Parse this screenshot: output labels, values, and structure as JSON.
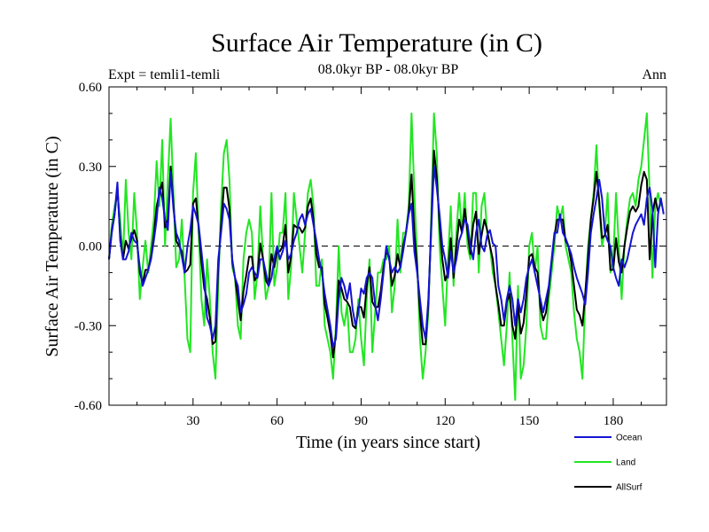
{
  "chart_data": {
    "type": "line",
    "title": "Surface Air Temperature (in C)",
    "subtitle_left": "Expt = temli1-temli",
    "subtitle_center": "08.0kyr BP - 08.0kyr BP",
    "subtitle_right": "Ann",
    "xlabel": "Time (in years since start)",
    "ylabel": "Surface Air Temperature (in C)",
    "xlim": [
      0,
      199
    ],
    "ylim": [
      -0.6,
      0.6
    ],
    "xticks": [
      30,
      60,
      90,
      120,
      150,
      180
    ],
    "yticks": [
      -0.6,
      -0.3,
      0.0,
      0.3,
      0.6
    ],
    "ytick_labels": [
      "-0.60",
      "-0.30",
      "0.00",
      "0.30",
      "0.60"
    ],
    "zero_line": "dashed",
    "legend_position": "bottom-right",
    "series": [
      {
        "name": "Ocean",
        "color": "#1414d2",
        "values": [
          -0.05,
          0.05,
          0.12,
          0.24,
          0.02,
          -0.05,
          -0.05,
          -0.02,
          0.05,
          0.02,
          0.01,
          -0.08,
          -0.15,
          -0.12,
          -0.09,
          -0.05,
          0.02,
          0.1,
          0.22,
          0.18,
          0.1,
          0.06,
          0.28,
          0.14,
          0.05,
          0.02,
          -0.04,
          -0.1,
          0.0,
          0.06,
          0.15,
          0.12,
          0.08,
          -0.02,
          -0.12,
          -0.27,
          -0.3,
          -0.35,
          -0.3,
          -0.05,
          0.05,
          0.16,
          0.14,
          0.1,
          -0.05,
          -0.12,
          -0.15,
          -0.25,
          -0.22,
          -0.18,
          -0.1,
          -0.08,
          -0.1,
          -0.12,
          -0.05,
          -0.05,
          -0.1,
          -0.15,
          -0.12,
          -0.05,
          0.0,
          -0.05,
          -0.02,
          0.02,
          -0.05,
          -0.03,
          0.02,
          0.05,
          0.1,
          0.12,
          0.08,
          0.12,
          0.14,
          0.08,
          0.02,
          -0.05,
          -0.1,
          -0.18,
          -0.24,
          -0.3,
          -0.38,
          -0.35,
          -0.2,
          -0.12,
          -0.15,
          -0.2,
          -0.14,
          -0.24,
          -0.3,
          -0.25,
          -0.16,
          -0.18,
          -0.12,
          -0.1,
          -0.12,
          -0.22,
          -0.28,
          -0.2,
          -0.1,
          0.0,
          -0.05,
          -0.1,
          -0.08,
          -0.1,
          -0.08,
          -0.02,
          0.05,
          0.12,
          0.16,
          -0.02,
          -0.1,
          -0.2,
          -0.3,
          -0.35,
          -0.2,
          0.05,
          0.3,
          0.22,
          0.12,
          0.0,
          -0.05,
          -0.12,
          -0.02,
          -0.1,
          -0.05,
          0.02,
          0.05,
          0.1,
          0.08,
          0.0,
          -0.05,
          0.05,
          0.1,
          0.0,
          -0.02,
          0.04,
          0.06,
          0.01,
          0.0,
          -0.15,
          -0.2,
          -0.28,
          -0.2,
          -0.15,
          -0.2,
          -0.3,
          -0.2,
          -0.25,
          -0.2,
          -0.12,
          -0.08,
          -0.05,
          -0.1,
          -0.15,
          -0.2,
          -0.25,
          -0.2,
          -0.15,
          -0.05,
          0.05,
          0.05,
          0.12,
          0.05,
          0.03,
          0.0,
          -0.03,
          -0.08,
          -0.12,
          -0.15,
          -0.18,
          -0.22,
          -0.1,
          0.05,
          0.12,
          0.18,
          0.25,
          0.18,
          0.05,
          0.02,
          0.0,
          -0.08,
          -0.12,
          -0.15,
          -0.05,
          -0.08,
          -0.05,
          0.0,
          0.05,
          0.08,
          0.1,
          0.12,
          0.08,
          0.18,
          0.22,
          0.14,
          -0.08,
          0.12,
          0.18,
          0.12
        ]
      },
      {
        "name": "Land",
        "color": "#22e622",
        "values": [
          -0.05,
          0.08,
          0.15,
          0.2,
          0.1,
          -0.05,
          0.25,
          0.05,
          -0.05,
          0.2,
          0.05,
          -0.2,
          -0.08,
          0.02,
          -0.1,
          0.0,
          0.1,
          0.32,
          0.15,
          0.4,
          0.0,
          0.25,
          0.48,
          0.2,
          -0.08,
          -0.05,
          0.1,
          -0.12,
          -0.35,
          -0.4,
          0.2,
          0.35,
          0.05,
          -0.2,
          -0.3,
          -0.05,
          -0.2,
          -0.4,
          -0.5,
          -0.15,
          0.15,
          0.35,
          0.4,
          0.25,
          -0.08,
          -0.12,
          -0.3,
          -0.35,
          -0.05,
          0.05,
          0.1,
          0.05,
          -0.2,
          -0.1,
          0.15,
          -0.05,
          -0.2,
          -0.15,
          0.2,
          -0.15,
          -0.08,
          0.05,
          0.05,
          0.2,
          -0.2,
          -0.08,
          0.2,
          0.1,
          0.0,
          -0.1,
          0.05,
          0.2,
          0.25,
          0.15,
          -0.15,
          -0.15,
          -0.05,
          -0.3,
          -0.35,
          -0.4,
          -0.5,
          -0.3,
          0.0,
          -0.25,
          -0.3,
          -0.22,
          -0.4,
          -0.4,
          -0.35,
          -0.2,
          -0.35,
          -0.45,
          -0.2,
          -0.05,
          -0.4,
          -0.25,
          -0.1,
          -0.1,
          -0.05,
          -0.05,
          0.0,
          -0.25,
          -0.15,
          0.1,
          -0.1,
          0.05,
          0.05,
          0.15,
          0.5,
          0.2,
          -0.05,
          -0.35,
          -0.5,
          -0.4,
          -0.25,
          0.1,
          0.5,
          0.35,
          0.0,
          -0.15,
          -0.3,
          -0.05,
          0.15,
          -0.15,
          0.05,
          0.2,
          0.05,
          0.2,
          0.0,
          -0.05,
          0.2,
          0.2,
          -0.1,
          0.15,
          0.2,
          0.05,
          0.0,
          -0.1,
          -0.15,
          -0.25,
          -0.35,
          -0.45,
          -0.3,
          -0.1,
          -0.35,
          -0.58,
          -0.15,
          -0.5,
          -0.45,
          -0.3,
          0.0,
          0.05,
          -0.1,
          0.0,
          -0.3,
          -0.35,
          -0.35,
          -0.2,
          -0.1,
          0.0,
          0.15,
          0.1,
          0.15,
          0.0,
          -0.05,
          -0.1,
          -0.25,
          -0.35,
          -0.4,
          -0.5,
          -0.2,
          0.0,
          0.1,
          0.2,
          0.38,
          0.15,
          0.0,
          0.05,
          0.2,
          -0.1,
          -0.05,
          0.2,
          0.0,
          -0.2,
          0.0,
          0.1,
          0.18,
          0.2,
          0.15,
          0.25,
          0.3,
          0.4,
          0.5,
          0.2,
          -0.12,
          0.15,
          0.2,
          0.15
        ]
      },
      {
        "name": "AllSurf",
        "color": "#000000",
        "values": [
          -0.05,
          0.06,
          0.12,
          0.22,
          0.04,
          -0.05,
          0.02,
          -0.01,
          0.03,
          0.06,
          0.02,
          -0.1,
          -0.14,
          -0.09,
          -0.09,
          -0.04,
          0.04,
          0.15,
          0.2,
          0.24,
          0.07,
          0.1,
          0.3,
          0.16,
          0.02,
          0.0,
          -0.02,
          -0.1,
          -0.09,
          -0.07,
          0.16,
          0.18,
          0.07,
          -0.06,
          -0.16,
          -0.2,
          -0.27,
          -0.37,
          -0.36,
          -0.08,
          0.08,
          0.22,
          0.22,
          0.14,
          -0.06,
          -0.12,
          -0.2,
          -0.28,
          -0.17,
          -0.11,
          -0.04,
          -0.04,
          -0.13,
          -0.11,
          0.01,
          -0.05,
          -0.13,
          -0.15,
          -0.03,
          -0.08,
          -0.02,
          -0.02,
          0.0,
          0.08,
          -0.1,
          -0.04,
          0.08,
          0.07,
          0.07,
          0.05,
          0.07,
          0.15,
          0.18,
          0.1,
          -0.03,
          -0.08,
          -0.08,
          -0.22,
          -0.27,
          -0.33,
          -0.42,
          -0.33,
          -0.13,
          -0.16,
          -0.2,
          -0.21,
          -0.23,
          -0.3,
          -0.31,
          -0.23,
          -0.23,
          -0.27,
          -0.15,
          -0.08,
          -0.21,
          -0.23,
          -0.23,
          -0.17,
          -0.08,
          -0.02,
          -0.04,
          -0.15,
          -0.11,
          -0.03,
          -0.08,
          0.0,
          0.05,
          0.13,
          0.27,
          0.05,
          -0.08,
          -0.25,
          -0.37,
          -0.37,
          -0.22,
          0.07,
          0.36,
          0.26,
          0.08,
          -0.05,
          -0.13,
          -0.1,
          0.03,
          -0.12,
          0.0,
          0.1,
          0.05,
          0.14,
          0.05,
          -0.03,
          0.08,
          0.13,
          -0.03,
          0.04,
          0.1,
          0.06,
          0.0,
          -0.05,
          -0.15,
          -0.22,
          -0.3,
          -0.3,
          -0.21,
          -0.18,
          -0.3,
          -0.35,
          -0.22,
          -0.33,
          -0.29,
          -0.18,
          -0.04,
          -0.03,
          -0.08,
          -0.1,
          -0.23,
          -0.28,
          -0.25,
          -0.16,
          -0.06,
          0.04,
          0.1,
          0.1,
          0.1,
          0.02,
          0.0,
          -0.06,
          -0.15,
          -0.24,
          -0.26,
          -0.3,
          -0.18,
          -0.04,
          0.1,
          0.18,
          0.28,
          0.17,
          0.03,
          0.04,
          0.08,
          -0.09,
          -0.09,
          0.03,
          -0.06,
          -0.1,
          0.0,
          0.07,
          0.13,
          0.15,
          0.13,
          0.15,
          0.23,
          0.28,
          0.25,
          -0.05,
          0.12,
          0.18,
          0.13
        ]
      }
    ]
  }
}
